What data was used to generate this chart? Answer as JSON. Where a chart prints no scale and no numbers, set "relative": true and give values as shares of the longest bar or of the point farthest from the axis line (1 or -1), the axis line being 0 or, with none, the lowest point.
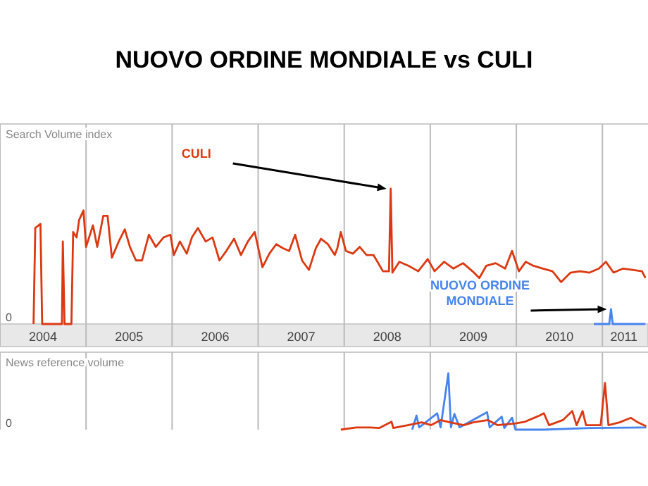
{
  "chart_data": [
    {
      "type": "line",
      "title": "NUOVO ORDINE MONDIALE vs CULI",
      "ylabel": "Search Volume index",
      "relative": true,
      "grid": "x",
      "tick_labels": "x",
      "xlim": [
        2004,
        2011.53
      ],
      "xticks": [
        {
          "value": 2004,
          "label": null
        },
        {
          "value": 2004.5,
          "label": "2004"
        },
        {
          "value": 2005,
          "label": null
        },
        {
          "value": 2005.5,
          "label": "2005"
        },
        {
          "value": 2006,
          "label": null
        },
        {
          "value": 2006.5,
          "label": "2006"
        },
        {
          "value": 2007,
          "label": null
        },
        {
          "value": 2007.5,
          "label": "2007"
        },
        {
          "value": 2008,
          "label": null
        },
        {
          "value": 2008.5,
          "label": "2008"
        },
        {
          "value": 2009,
          "label": null
        },
        {
          "value": 2009.5,
          "label": "2009"
        },
        {
          "value": 2010,
          "label": null
        },
        {
          "value": 2010.5,
          "label": "2010"
        },
        {
          "value": 2011,
          "label": null
        },
        {
          "value": 2011.25,
          "label": "2011"
        }
      ],
      "annotations": [
        "0"
      ],
      "series": [
        {
          "name": "NUOVO ORDINE MONDIALE",
          "color": "#4684ee",
          "x": [
            2010.9,
            2011.08,
            2011.1,
            2011.12,
            2011.5
          ],
          "values": [
            0,
            0,
            0.11,
            0,
            0
          ]
        },
        {
          "name": "CULI",
          "color": "#dc3912",
          "x": [
            2004.39,
            2004.41,
            2004.47,
            2004.49,
            2004.72,
            2004.73,
            2004.75,
            2004.83,
            2004.85,
            2004.89,
            2004.92,
            2004.97,
            2005.0,
            2005.08,
            2005.13,
            2005.2,
            2005.25,
            2005.3,
            2005.38,
            2005.45,
            2005.51,
            2005.58,
            2005.65,
            2005.73,
            2005.81,
            2005.9,
            2005.98,
            2006.02,
            2006.09,
            2006.17,
            2006.23,
            2006.3,
            2006.39,
            2006.47,
            2006.55,
            2006.63,
            2006.72,
            2006.8,
            2006.88,
            2006.96,
            2007.05,
            2007.13,
            2007.21,
            2007.29,
            2007.36,
            2007.43,
            2007.51,
            2007.59,
            2007.67,
            2007.73,
            2007.81,
            2007.89,
            2007.92,
            2007.96,
            2008.02,
            2008.1,
            2008.18,
            2008.26,
            2008.34,
            2008.45,
            2008.52,
            2008.54,
            2008.56,
            2008.64,
            2008.75,
            2008.86,
            2008.97,
            2009.05,
            2009.16,
            2009.27,
            2009.38,
            2009.49,
            2009.57,
            2009.65,
            2009.76,
            2009.87,
            2009.95,
            2010.03,
            2010.11,
            2010.2,
            2010.31,
            2010.42,
            2010.52,
            2010.63,
            2010.74,
            2010.85,
            2010.96,
            2011.04,
            2011.13,
            2011.24,
            2011.35,
            2011.46,
            2011.5
          ],
          "values": [
            0,
            0.71,
            0.74,
            0,
            0,
            0.61,
            0,
            0,
            0.68,
            0.64,
            0.77,
            0.84,
            0.57,
            0.73,
            0.57,
            0.8,
            0.8,
            0.49,
            0.61,
            0.7,
            0.57,
            0.47,
            0.47,
            0.66,
            0.57,
            0.64,
            0.66,
            0.51,
            0.61,
            0.52,
            0.64,
            0.71,
            0.61,
            0.64,
            0.47,
            0.54,
            0.63,
            0.51,
            0.61,
            0.68,
            0.42,
            0.52,
            0.59,
            0.56,
            0.54,
            0.66,
            0.47,
            0.4,
            0.56,
            0.63,
            0.59,
            0.51,
            0.56,
            0.68,
            0.54,
            0.52,
            0.57,
            0.51,
            0.51,
            0.39,
            0.39,
            1,
            0.38,
            0.46,
            0.43,
            0.39,
            0.48,
            0.39,
            0.46,
            0.41,
            0.45,
            0.39,
            0.34,
            0.43,
            0.45,
            0.41,
            0.54,
            0.39,
            0.46,
            0.43,
            0.41,
            0.39,
            0.31,
            0.38,
            0.39,
            0.38,
            0.41,
            0.46,
            0.38,
            0.41,
            0.4,
            0.39,
            0.34
          ]
        }
      ]
    },
    {
      "type": "line",
      "ylabel": "News reference volume",
      "relative": true,
      "grid": "x",
      "tick_labels": false,
      "xlim": [
        2004,
        2011.53
      ],
      "xticks": [
        {
          "value": 2004,
          "label": null
        },
        {
          "value": 2005,
          "label": null
        },
        {
          "value": 2006,
          "label": null
        },
        {
          "value": 2007,
          "label": null
        },
        {
          "value": 2008,
          "label": null
        },
        {
          "value": 2009,
          "label": null
        },
        {
          "value": 2010,
          "label": null
        },
        {
          "value": 2011,
          "label": null
        }
      ],
      "annotations": [
        "0"
      ],
      "series": [
        {
          "color": "#4684ee",
          "x": [
            2008.79,
            2008.84,
            2008.87,
            2009.08,
            2009.12,
            2009.21,
            2009.24,
            2009.28,
            2009.34,
            2009.66,
            2009.69,
            2009.83,
            2009.86,
            2009.95,
            2009.99,
            2010.32,
            2010.87,
            2011.51
          ],
          "values": [
            0,
            0.25,
            0.04,
            0.29,
            0.04,
            1,
            0.04,
            0.28,
            0.04,
            0.31,
            0.04,
            0.23,
            0.03,
            0.21,
            0,
            0,
            0.03,
            0.04
          ]
        },
        {
          "color": "#dc3912",
          "x": [
            2007.96,
            2008.14,
            2008.3,
            2008.41,
            2008.55,
            2008.57,
            2008.74,
            2008.9,
            2009.01,
            2009.12,
            2009.23,
            2009.39,
            2009.5,
            2009.67,
            2009.78,
            2009.99,
            2010.1,
            2010.27,
            2010.32,
            2010.38,
            2010.54,
            2010.65,
            2010.7,
            2010.77,
            2010.81,
            2010.98,
            2011.03,
            2011.07,
            2011.2,
            2011.33,
            2011.41,
            2011.51
          ],
          "values": [
            0,
            0.04,
            0.04,
            0.03,
            0.14,
            0.03,
            0.08,
            0.13,
            0.08,
            0.17,
            0.13,
            0.08,
            0.13,
            0.17,
            0.08,
            0.11,
            0.14,
            0.25,
            0.29,
            0.08,
            0.17,
            0.33,
            0.08,
            0.33,
            0.08,
            0.08,
            0.83,
            0.08,
            0.13,
            0.21,
            0.13,
            0.06
          ]
        }
      ]
    }
  ]
}
